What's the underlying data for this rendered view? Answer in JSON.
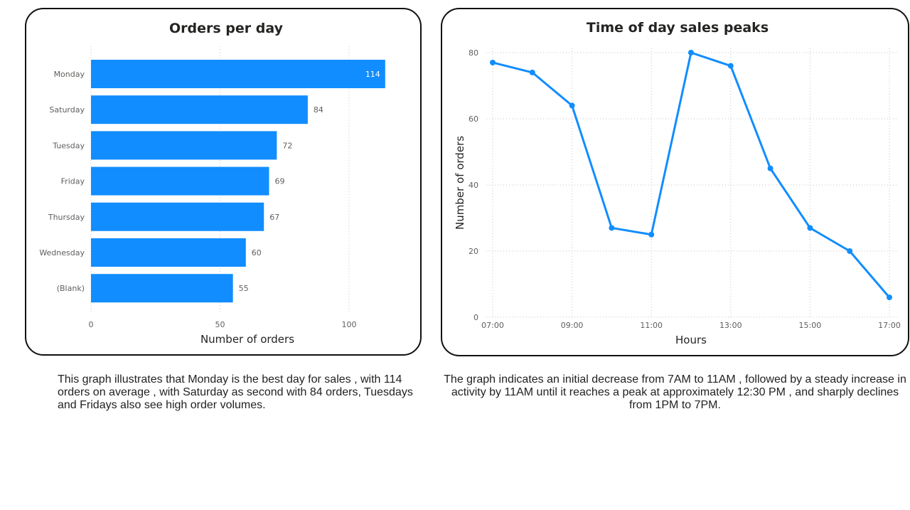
{
  "chart_data": [
    {
      "type": "bar",
      "orientation": "horizontal",
      "title": "Orders per day",
      "xlabel": "Number of orders",
      "ylabel": "",
      "categories": [
        "Monday",
        "Saturday",
        "Tuesday",
        "Friday",
        "Thursday",
        "Wednesday",
        "(Blank)"
      ],
      "values": [
        114,
        84,
        72,
        69,
        67,
        60,
        55
      ],
      "xlim": [
        0,
        128
      ],
      "xticks": [
        "0",
        "50",
        "100"
      ],
      "color": "#118DFF",
      "grid": true
    },
    {
      "type": "line",
      "title": "Time of day sales peaks",
      "xlabel": "Hours",
      "ylabel": "Number of orders",
      "x": [
        "07:00",
        "08:00",
        "09:00",
        "10:00",
        "11:00",
        "12:00",
        "13:00",
        "14:00",
        "15:00",
        "16:00",
        "17:00"
      ],
      "values": [
        77,
        74,
        64,
        27,
        25,
        80,
        76,
        45,
        27,
        20,
        6
      ],
      "xticks": [
        "07:00",
        "09:00",
        "11:00",
        "13:00",
        "15:00",
        "17:00"
      ],
      "ylim": [
        0,
        80
      ],
      "yticks": [
        "0",
        "20",
        "40",
        "60",
        "80"
      ],
      "color": "#118DFF",
      "grid": true
    }
  ],
  "captions": {
    "left": "This graph illustrates that Monday is the best day for sales , with 114 orders on average , with Saturday as second with 84 orders, Tuesdays and Fridays also see high order volumes.",
    "right": "The graph indicates an initial decrease from 7AM to 11AM , followed by a steady increase in activity by 11AM until it reaches a peak at approximately 12:30 PM , and sharply declines from 1PM to 7PM."
  }
}
